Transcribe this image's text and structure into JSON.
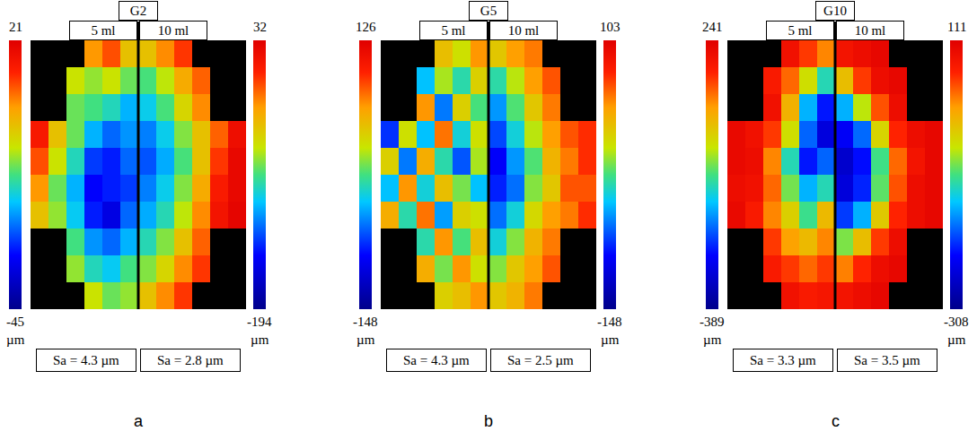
{
  "chart_data": [
    {
      "type": "heatmap",
      "title": "G2",
      "panel_label": "a",
      "tick_labels": false,
      "unit": "µm",
      "halves": [
        {
          "title": "5 ml",
          "colorbar_range": [
            -45,
            21
          ],
          "colorbar_ticks": [
            -45,
            21
          ],
          "annotation": "Sa = 4.3 µm",
          "z": [
            [
              null,
              null,
              null,
              5,
              10,
              0
            ],
            [
              null,
              null,
              -5,
              -8,
              -5,
              -10
            ],
            [
              null,
              null,
              -10,
              -12,
              -15,
              -20
            ],
            [
              15,
              0,
              -10,
              -20,
              -25,
              -22
            ],
            [
              10,
              -5,
              -15,
              -28,
              -30,
              -25
            ],
            [
              5,
              -10,
              -20,
              -32,
              -30,
              -28
            ],
            [
              0,
              -8,
              -18,
              -30,
              -35,
              -25
            ],
            [
              null,
              null,
              -12,
              -22,
              -25,
              -20
            ],
            [
              null,
              null,
              -8,
              -15,
              -18,
              -12
            ],
            [
              null,
              null,
              null,
              -5,
              -10,
              -8
            ]
          ]
        },
        {
          "title": "10 ml",
          "colorbar_range": [
            -194,
            32
          ],
          "colorbar_ticks": [
            -194,
            32
          ],
          "annotation": "Sa = 2.8 µm",
          "z": [
            [
              -40,
              -20,
              0,
              null,
              null,
              null
            ],
            [
              -80,
              -60,
              -30,
              -10,
              null,
              null
            ],
            [
              -100,
              -80,
              -50,
              -20,
              null,
              null
            ],
            [
              -120,
              -100,
              -70,
              -40,
              -10,
              20
            ],
            [
              -130,
              -110,
              -80,
              -40,
              0,
              25
            ],
            [
              -120,
              -100,
              -70,
              -30,
              10,
              25
            ],
            [
              -110,
              -90,
              -60,
              -20,
              15,
              28
            ],
            [
              -90,
              -70,
              -40,
              -10,
              null,
              null
            ],
            [
              -70,
              -50,
              -20,
              0,
              null,
              null
            ],
            [
              -40,
              -20,
              0,
              null,
              null,
              null
            ]
          ]
        }
      ]
    },
    {
      "type": "heatmap",
      "title": "G5",
      "panel_label": "b",
      "tick_labels": false,
      "unit": "µm",
      "halves": [
        {
          "title": "5 ml",
          "colorbar_range": [
            -148,
            126
          ],
          "colorbar_ticks": [
            -148,
            126
          ],
          "annotation": "Sa = 4.3 µm",
          "z": [
            [
              null,
              null,
              null,
              40,
              20,
              60
            ],
            [
              null,
              null,
              -40,
              10,
              -20,
              30
            ],
            [
              null,
              null,
              60,
              -60,
              30,
              -10
            ],
            [
              -80,
              20,
              -40,
              70,
              -30,
              20
            ],
            [
              30,
              -60,
              50,
              -20,
              -70,
              10
            ],
            [
              -40,
              60,
              -30,
              40,
              0,
              -40
            ],
            [
              50,
              -20,
              70,
              -50,
              30,
              20
            ],
            [
              null,
              null,
              -20,
              60,
              -10,
              40
            ],
            [
              null,
              null,
              50,
              0,
              60,
              20
            ],
            [
              null,
              null,
              null,
              30,
              40,
              60
            ]
          ]
        },
        {
          "title": "10 ml",
          "colorbar_range": [
            -148,
            103
          ],
          "colorbar_ticks": [
            -148,
            103
          ],
          "annotation": "Sa = 2.5 µm",
          "z": [
            [
              20,
              40,
              50,
              null,
              null,
              null
            ],
            [
              -30,
              0,
              40,
              60,
              null,
              null
            ],
            [
              -60,
              -20,
              20,
              50,
              null,
              null
            ],
            [
              -80,
              -40,
              0,
              40,
              60,
              70
            ],
            [
              -100,
              -60,
              -20,
              30,
              50,
              70
            ],
            [
              -90,
              -70,
              -10,
              20,
              60,
              60
            ],
            [
              -70,
              -40,
              10,
              40,
              50,
              70
            ],
            [
              -40,
              -10,
              30,
              50,
              null,
              null
            ],
            [
              -10,
              20,
              40,
              60,
              null,
              null
            ],
            [
              20,
              30,
              50,
              null,
              null,
              null
            ]
          ]
        }
      ]
    },
    {
      "type": "heatmap",
      "title": "G10",
      "panel_label": "c",
      "tick_labels": false,
      "unit": "µm",
      "halves": [
        {
          "title": "5 ml",
          "colorbar_range": [
            -389,
            241
          ],
          "colorbar_ticks": [
            -389,
            241
          ],
          "annotation": "Sa = 3.3 µm",
          "z": [
            [
              null,
              null,
              null,
              200,
              150,
              100
            ],
            [
              null,
              null,
              180,
              120,
              0,
              -100
            ],
            [
              null,
              null,
              200,
              60,
              -150,
              -250
            ],
            [
              220,
              200,
              150,
              0,
              -200,
              -300
            ],
            [
              220,
              210,
              100,
              -100,
              -250,
              -200
            ],
            [
              210,
              200,
              120,
              -50,
              -150,
              -100
            ],
            [
              220,
              180,
              100,
              20,
              -80,
              50
            ],
            [
              null,
              null,
              150,
              80,
              50,
              100
            ],
            [
              null,
              null,
              180,
              150,
              120,
              150
            ],
            [
              null,
              null,
              null,
              200,
              180,
              190
            ]
          ]
        },
        {
          "title": "10 ml",
          "colorbar_range": [
            -308,
            111
          ],
          "colorbar_ticks": [
            -308,
            111
          ],
          "annotation": "Sa = 3.5 µm",
          "z": [
            [
              80,
              90,
              100,
              null,
              null,
              null
            ],
            [
              -20,
              50,
              90,
              100,
              null,
              null
            ],
            [
              -150,
              -60,
              40,
              90,
              null,
              null
            ],
            [
              -230,
              -180,
              -40,
              60,
              90,
              100
            ],
            [
              -260,
              -220,
              -100,
              30,
              80,
              100
            ],
            [
              -250,
              -210,
              -90,
              40,
              90,
              100
            ],
            [
              -200,
              -150,
              -30,
              60,
              90,
              100
            ],
            [
              -80,
              -20,
              50,
              90,
              null,
              null
            ],
            [
              20,
              60,
              90,
              100,
              null,
              null
            ],
            [
              80,
              90,
              100,
              null,
              null,
              null
            ]
          ]
        }
      ]
    }
  ]
}
